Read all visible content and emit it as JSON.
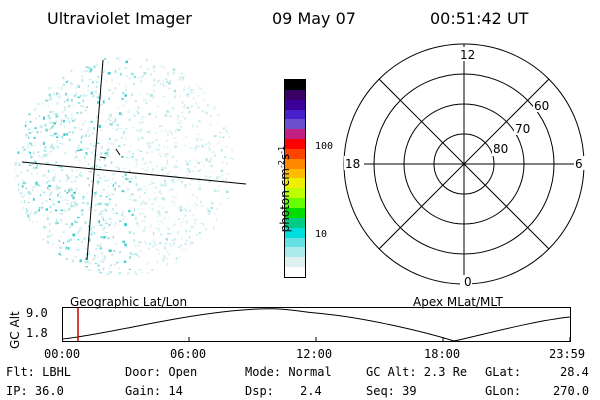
{
  "header": {
    "title": "Ultraviolet Imager",
    "date": "09 May 07",
    "time": "00:51:42 UT"
  },
  "colorbar": {
    "unit_label": "photon cm",
    "unit_exp1": "-2",
    "unit_mid": "s",
    "unit_exp2": "-1",
    "tick_100": "100",
    "tick_10": "10",
    "colors": [
      "#000000",
      "#3a0066",
      "#3c0099",
      "#4a20cc",
      "#6a50cc",
      "#c02080",
      "#ff0000",
      "#ff4400",
      "#ff8800",
      "#ffbb00",
      "#eeee00",
      "#bbff00",
      "#66ff00",
      "#00dd00",
      "#00cc88",
      "#00dddd",
      "#66e0e0",
      "#aaeaea",
      "#e0f0f0",
      "#ffffff"
    ]
  },
  "polar": {
    "lat_labels": [
      "60",
      "70",
      "80"
    ],
    "mlt_labels": {
      "top": "12",
      "bottom": "0",
      "left": "18",
      "right": "6"
    }
  },
  "timeline": {
    "axis_label": "GC Alt",
    "y_high": "9.0",
    "y_low": "1.8",
    "left_caption": "Geographic Lat/Lon",
    "right_caption": "Apex MLat/MLT",
    "x_ticks": [
      "00:00",
      "06:00",
      "12:00",
      "18:00",
      "23:59"
    ],
    "current_time_marker_color": "#cc0000"
  },
  "status": {
    "flt": "Flt: LBHL",
    "ip": "IP: 36.0",
    "door": "Door: Open",
    "gain": "Gain: 14",
    "mode": "Mode: Normal",
    "dsp_label": "Dsp:",
    "dsp_value": "2.4",
    "gc_alt": "GC Alt: 2.3 Re",
    "seq": "Seq: 39",
    "glat_label": "GLat:",
    "glat_value": "28.4",
    "glon_label": "GLon:",
    "glon_value": "270.0"
  }
}
